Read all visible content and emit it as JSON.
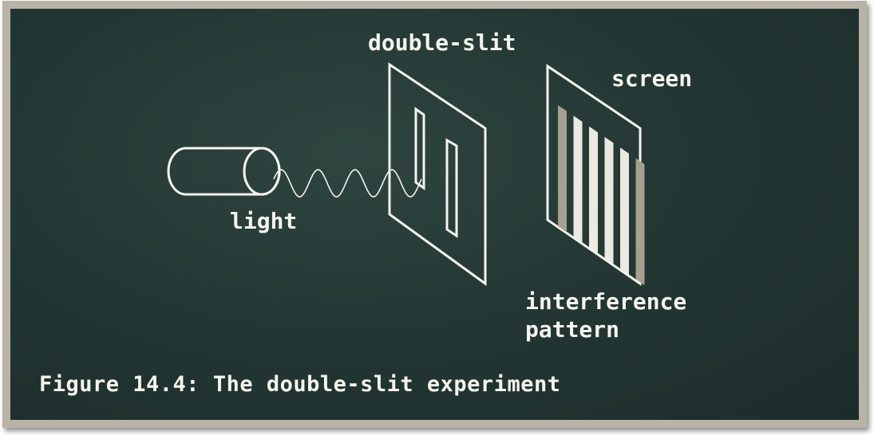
{
  "labels": {
    "slit": "double-slit",
    "screen": "screen",
    "light": "light",
    "pattern_line1": "interference",
    "pattern_line2": "pattern"
  },
  "caption": "Figure 14.4: The double-slit experiment",
  "colors": {
    "board": "#243734",
    "frame": "#b8b3a6",
    "chalk": "#f4f4ef",
    "fringe_bright": "#ece9e2",
    "fringe_dim": "#a79f90"
  },
  "icons": {
    "light_source": "cylinder-icon",
    "wave": "sine-wave-icon"
  }
}
